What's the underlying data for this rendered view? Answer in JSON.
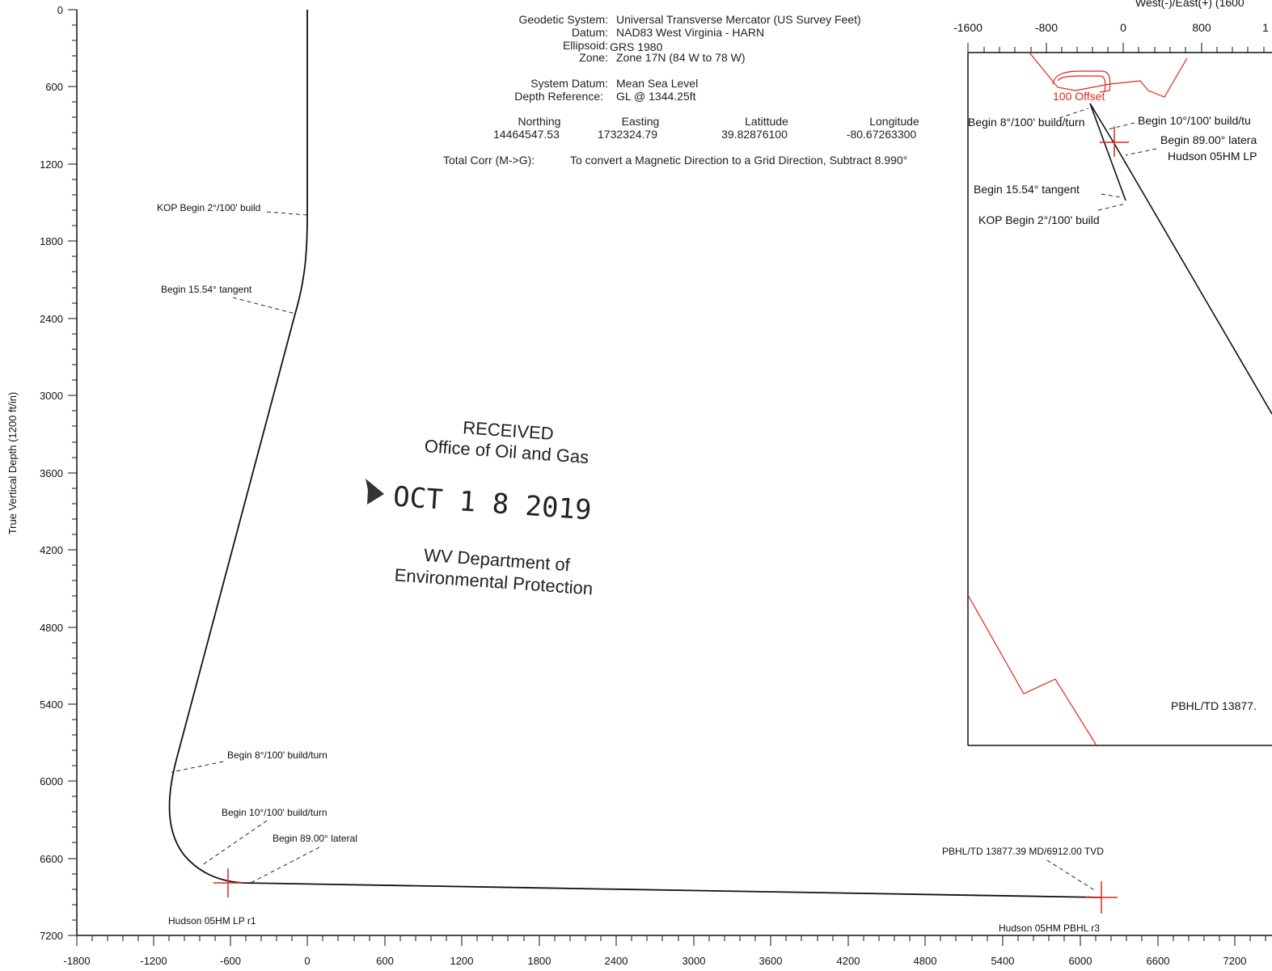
{
  "section_view": {
    "ylabel": "True Vertical Depth (1200 ft/in)",
    "y_ticks": [
      "0",
      "600",
      "1200",
      "1800",
      "2400",
      "3000",
      "3600",
      "4200",
      "4800",
      "5400",
      "6000",
      "6600",
      "7200"
    ],
    "x_ticks": [
      "-1800",
      "-1200",
      "-600",
      "0",
      "600",
      "1200",
      "1800",
      "2400",
      "3000",
      "3600",
      "4200",
      "4800",
      "5400",
      "6000",
      "6600",
      "7200"
    ],
    "annotations": {
      "kop": "KOP Begin 2°/100' build",
      "tangent": "Begin 15.54° tangent",
      "build8": "Begin 8°/100' build/turn",
      "build10": "Begin 10°/100' build/turn",
      "lateral": "Begin 89.00° lateral",
      "lp": "Hudson 05HM LP r1",
      "pbhl_td": "PBHL/TD 13877.39 MD/6912.00 TVD",
      "pbhl": "Hudson 05HM PBHL r3"
    }
  },
  "header": {
    "geodetic_label": "Geodetic System:",
    "geodetic_value": "Universal Transverse Mercator (US Survey Feet)",
    "datum_label": "Datum:",
    "datum_value": "NAD83 West Virginia - HARN",
    "ellipsoid_label": "Ellipsoid:",
    "ellipsoid_value": "GRS 1980",
    "zone_label": "Zone:",
    "zone_value": "Zone 17N (84 W to 78 W)",
    "system_datum_label": "System Datum:",
    "system_datum_value": "Mean Sea Level",
    "depth_ref_label": "Depth Reference:",
    "depth_ref_value": "GL @ 1344.25ft",
    "northing_label": "Northing",
    "northing_value": "14464547.53",
    "easting_label": "Easting",
    "easting_value": "1732324.79",
    "latitude_label": "Latittude",
    "latitude_value": "39.82876100",
    "longitude_label": "Longitude",
    "longitude_value": "-80.67263300",
    "total_corr_label": "Total Corr (M->G):",
    "total_corr_value": "To convert a Magnetic Direction to a Grid Direction, Subtract 8.990°"
  },
  "plan_view": {
    "axis_title": "West(-)/East(+) (1600 ",
    "x_ticks": [
      "-1600",
      "-800",
      "0",
      "800",
      "1"
    ],
    "annotations": {
      "offset": "100 Offset",
      "build8": "Begin 8°/100' build/turn",
      "build10": "Begin 10°/100' build/tu",
      "lateral": "Begin 89.00° latera",
      "lp": "Hudson 05HM LP",
      "tangent": "Begin 15.54° tangent",
      "kop": "KOP Begin 2°/100' build",
      "pbhl": "PBHL/TD 13877."
    }
  },
  "stamp": {
    "line1": "RECEIVED",
    "line2": "Office of Oil and Gas",
    "line3": "OCT 1 8 2019",
    "line4": "WV Department of",
    "line5": "Environmental Protection"
  },
  "colors": {
    "line": "#111111",
    "offset": "#e0251d",
    "stamp": "#222222"
  }
}
